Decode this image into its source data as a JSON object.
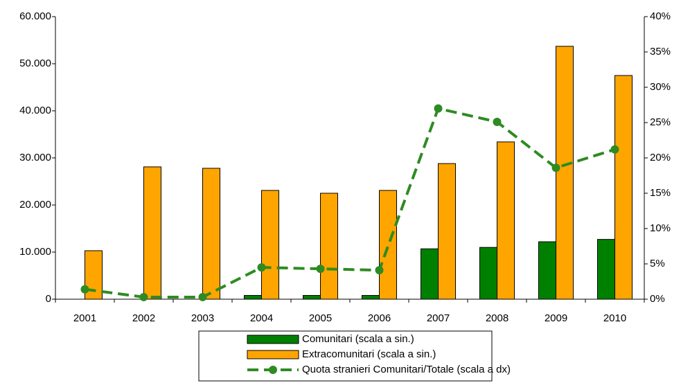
{
  "chart_data": {
    "type": "bar-line",
    "categories": [
      "2001",
      "2002",
      "2003",
      "2004",
      "2005",
      "2006",
      "2007",
      "2008",
      "2009",
      "2010"
    ],
    "series": [
      {
        "name": "Comunitari (scala a sin.)",
        "color": "#008000",
        "type": "bar",
        "values": [
          0,
          0,
          0,
          800,
          800,
          800,
          10700,
          11000,
          12200,
          12700
        ]
      },
      {
        "name": "Extracomunitari (scala a sin.)",
        "color": "#ffa500",
        "type": "bar",
        "values": [
          10300,
          28100,
          27800,
          23100,
          22500,
          23100,
          28800,
          33400,
          53700,
          47500
        ]
      },
      {
        "name": "Quota stranieri Comunitari/Totale (scala a dx)",
        "color": "#2e8b22",
        "type": "line",
        "axis": "y2",
        "values": [
          1.4,
          0.3,
          0.3,
          4.5,
          4.3,
          4.1,
          27.0,
          25.1,
          18.6,
          21.2
        ]
      }
    ],
    "ylim": [
      0,
      60000
    ],
    "yticks": [
      0,
      {
        "value": 10000,
        "label": "10.000"
      },
      {
        "value": 20000,
        "label": "20.000"
      },
      {
        "value": 30000,
        "label": "30.000"
      },
      {
        "value": 40000,
        "label": "40.000"
      },
      {
        "value": 50000,
        "label": "50.000"
      },
      {
        "value": 60000,
        "label": "60.000"
      }
    ],
    "y2lim": [
      0,
      40
    ],
    "y2ticks": [
      {
        "value": 0,
        "label": "0%"
      },
      {
        "value": 5,
        "label": "5%"
      },
      {
        "value": 10,
        "label": "10%"
      },
      {
        "value": 15,
        "label": "15%"
      },
      {
        "value": 20,
        "label": "20%"
      },
      {
        "value": 25,
        "label": "25%"
      },
      {
        "value": 30,
        "label": "30%"
      },
      {
        "value": 35,
        "label": "35%"
      },
      {
        "value": 40,
        "label": "40%"
      }
    ],
    "legend": "bottom"
  }
}
